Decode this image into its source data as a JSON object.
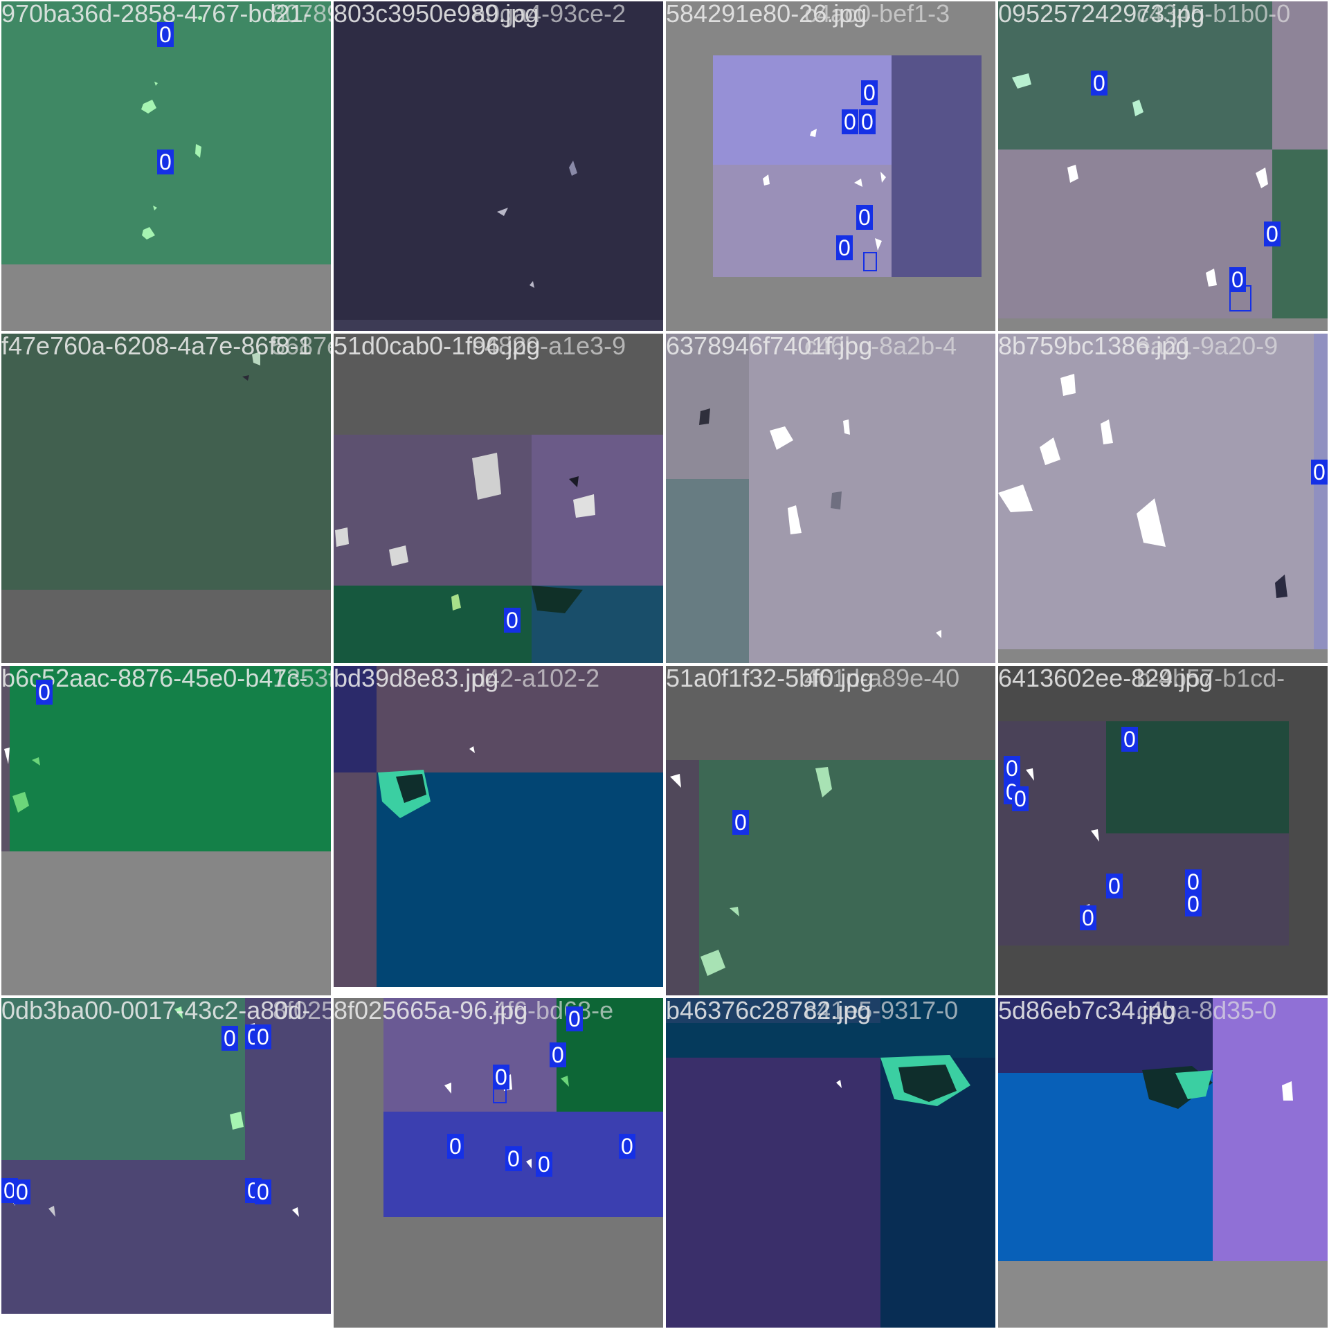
{
  "tiles": [
    {
      "filenames": [
        "970ba36d-2858-4767-bd21-",
        "8078998c-389-"
      ],
      "labels": [
        "0",
        "0"
      ]
    },
    {
      "filenames": [
        "803c3950e989.jpg",
        "a0ga4-93ce-2"
      ],
      "labels": []
    },
    {
      "filenames": [
        "584291e80-26.jpg",
        "c4ac0-bef1-3"
      ],
      "labels": [
        "0",
        "0",
        "0",
        "0",
        "0"
      ]
    },
    {
      "filenames": [
        "095257242973.jpg",
        "c4345-b1b0-0"
      ],
      "labels": [
        "0",
        "0",
        "0"
      ]
    },
    {
      "filenames": [
        "f47e760a-6208-4a7e-86f8-1",
        "5687ea2403f9e"
      ],
      "labels": []
    },
    {
      "filenames": [
        "51d0cab0-1f96.jpg",
        "c4829-a1e3-9"
      ],
      "labels": [
        "0"
      ]
    },
    {
      "filenames": [
        "6378946f7401f.jpg",
        "c46bc-8a2b-4"
      ],
      "labels": []
    },
    {
      "filenames": [
        "8b759bc1386.jpg",
        "ea21-9a20-9"
      ],
      "labels": [
        "0"
      ]
    },
    {
      "filenames": [
        "b6c52aac-8876-45e0-b47c-",
        "1353f382-840"
      ],
      "labels": [
        "0"
      ]
    },
    {
      "filenames": [
        "bd39d8e83.jpg",
        "d42-a102-2"
      ],
      "labels": []
    },
    {
      "filenames": [
        "51a0f1f32-5bf0.jpg",
        "461d-a89e-40"
      ],
      "labels": [
        "0"
      ]
    },
    {
      "filenames": [
        "6413602ee-829.jpg",
        "b-4b57-b1cd-"
      ],
      "labels": [
        "0",
        "0",
        "0",
        "0",
        "0",
        "0",
        "0",
        "0"
      ]
    },
    {
      "filenames": [
        "0db3ba00-0017-43c2-a80d-",
        "8f025665a-09"
      ],
      "labels": [
        "0",
        "0",
        "0",
        "0",
        "0",
        "0",
        "0"
      ]
    },
    {
      "filenames": [
        "8f025665a-96.jpg",
        "4f6-bd68-e"
      ],
      "labels": [
        "0",
        "0",
        "0",
        "0",
        "0",
        "0",
        "0"
      ]
    },
    {
      "filenames": [
        "b46376c28782.jpg",
        "c41e5-9317-0"
      ],
      "labels": []
    },
    {
      "filenames": [
        "5d86eb7c34.jpg",
        "c4ba-8d35-0"
      ],
      "labels": []
    }
  ],
  "colors": {
    "label_bg": "#1530e6",
    "padding_gray": "#878787",
    "separator": "#ffffff"
  }
}
